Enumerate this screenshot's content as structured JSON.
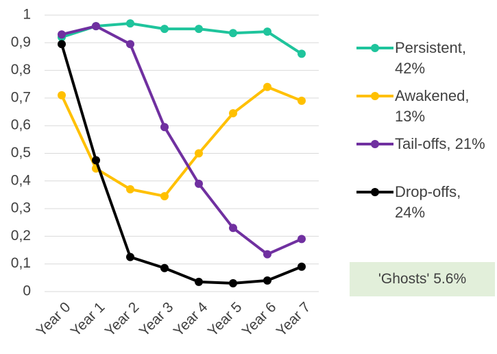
{
  "chart_data": {
    "type": "line",
    "categories": [
      "Year 0",
      "Year 1",
      "Year 2",
      "Year 3",
      "Year 4",
      "Year 5",
      "Year 6",
      "Year 7"
    ],
    "series": [
      {
        "name": "Persistent, 42%",
        "color": "#1fc49c",
        "values": [
          0.92,
          0.96,
          0.97,
          0.95,
          0.95,
          0.935,
          0.94,
          0.86
        ]
      },
      {
        "name": "Awakened, 13%",
        "color": "#ffc000",
        "values": [
          0.71,
          0.445,
          0.37,
          0.345,
          0.5,
          0.645,
          0.74,
          0.69
        ]
      },
      {
        "name": "Tail-offs, 21%",
        "color": "#7030a0",
        "values": [
          0.93,
          0.96,
          0.895,
          0.595,
          0.39,
          0.23,
          0.135,
          0.19
        ]
      },
      {
        "name": "Drop-offs, 24%",
        "color": "#000000",
        "values": [
          0.895,
          0.475,
          0.125,
          0.085,
          0.035,
          0.03,
          0.04,
          0.09
        ]
      }
    ],
    "ylim": [
      0,
      1
    ],
    "yticks": [
      0,
      {
        "value": 0.1,
        "label": "0,1"
      },
      {
        "value": 0.2,
        "label": "0,2"
      },
      {
        "value": 0.3,
        "label": "0,3"
      },
      {
        "value": 0.4,
        "label": "0,4"
      },
      {
        "value": 0.5,
        "label": "0,5"
      },
      {
        "value": 0.6,
        "label": "0,6"
      },
      {
        "value": 0.7,
        "label": "0,7"
      },
      {
        "value": 0.8,
        "label": "0,8"
      },
      {
        "value": 0.9,
        "label": "0,9"
      },
      1
    ],
    "grid": true,
    "legend": "right",
    "annotation": "'Ghosts' 5.6%"
  }
}
